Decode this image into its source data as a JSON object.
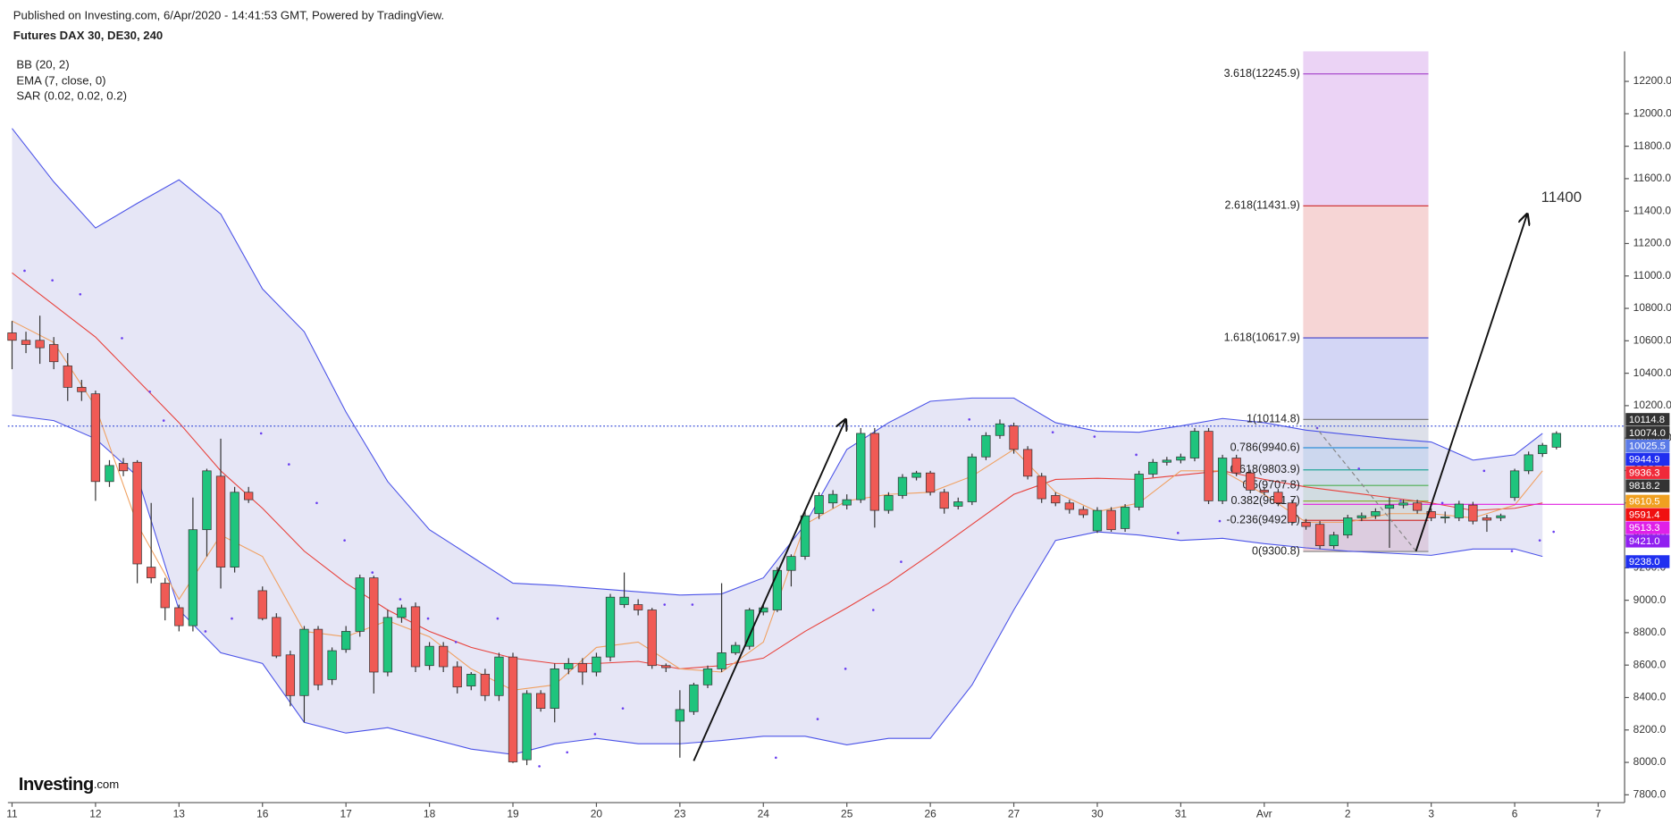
{
  "chart_data": {
    "type": "candlestick",
    "published": "Published on Investing.com, 6/Apr/2020 - 14:41:53 GMT, Powered by TradingView.",
    "title": "Futures DAX 30, DE30, 240",
    "logo": "Investing",
    "logo_suffix": ".com",
    "annotation": "11400",
    "up_color": "#1fc47d",
    "down_color": "#f05a55",
    "xlim": [
      -0.3,
      115.9
    ],
    "ylim": [
      7752,
      12385
    ],
    "xticks": [
      {
        "value": 0,
        "label": "11"
      },
      {
        "value": 6,
        "label": "12"
      },
      {
        "value": 12,
        "label": "13"
      },
      {
        "value": 18,
        "label": "16"
      },
      {
        "value": 24,
        "label": "17"
      },
      {
        "value": 30,
        "label": "18"
      },
      {
        "value": 36,
        "label": "19"
      },
      {
        "value": 42,
        "label": "20"
      },
      {
        "value": 48,
        "label": "23"
      },
      {
        "value": 54,
        "label": "24"
      },
      {
        "value": 60,
        "label": "25"
      },
      {
        "value": 66,
        "label": "26"
      },
      {
        "value": 72,
        "label": "27"
      },
      {
        "value": 78,
        "label": "30"
      },
      {
        "value": 84,
        "label": "31"
      },
      {
        "value": 90,
        "label": "Avr"
      },
      {
        "value": 96,
        "label": "2"
      },
      {
        "value": 102,
        "label": "3"
      },
      {
        "value": 108,
        "label": "6"
      },
      {
        "value": 114,
        "label": "7"
      }
    ],
    "yticks": [
      {
        "value": 7800,
        "label": "7800.0"
      },
      {
        "value": 8000,
        "label": "8000.0"
      },
      {
        "value": 8200,
        "label": "8200.0"
      },
      {
        "value": 8400,
        "label": "8400.0"
      },
      {
        "value": 8600,
        "label": "8600.0"
      },
      {
        "value": 8800,
        "label": "8800.0"
      },
      {
        "value": 9000,
        "label": "9000.0"
      },
      {
        "value": 9200,
        "label": "9200.0"
      },
      {
        "value": 9400,
        "label": "9400.0"
      },
      {
        "value": 9600,
        "label": "9600.0"
      },
      {
        "value": 9800,
        "label": "9800.0"
      },
      {
        "value": 10000,
        "label": "10000.0"
      },
      {
        "value": 10200,
        "label": "10200.0"
      },
      {
        "value": 10400,
        "label": "10400.0"
      },
      {
        "value": 10600,
        "label": "10600.0"
      },
      {
        "value": 10800,
        "label": "10800.0"
      },
      {
        "value": 11000,
        "label": "11000.0"
      },
      {
        "value": 11200,
        "label": "11200.0"
      },
      {
        "value": 11400,
        "label": "11400.0"
      },
      {
        "value": 11600,
        "label": "11600.0"
      },
      {
        "value": 11800,
        "label": "11800.0"
      },
      {
        "value": 12000,
        "label": "12000.0"
      },
      {
        "value": 12200,
        "label": "12200.0"
      }
    ],
    "candles": {
      "open": [
        10649,
        10603,
        10603,
        10577,
        10445,
        10313,
        10273,
        9732,
        9844,
        9851,
        9204,
        9105,
        8954,
        8843,
        9435,
        9765,
        9204,
        9666,
        9059,
        8894,
        8663,
        8412,
        8821,
        8511,
        8696,
        8808,
        9138,
        8557,
        8894,
        8960,
        8597,
        8716,
        8590,
        8471,
        8544,
        8412,
        8650,
        8016,
        8425,
        8333,
        8577,
        8610,
        8557,
        8650,
        8973,
        8973,
        8940,
        8597,
        8254,
        8313,
        8478,
        8577,
        8676,
        8716,
        8927,
        8940,
        9184,
        9270,
        9534,
        9600,
        9587,
        9620,
        10029,
        9554,
        9646,
        9758,
        9785,
        9666,
        9580,
        9607,
        9884,
        10016,
        10075,
        9930,
        9765,
        9646,
        9600,
        9560,
        9428,
        9554,
        9442,
        9574,
        9778,
        9851,
        9864,
        9877,
        10042,
        9613,
        9877,
        9785,
        9679,
        9666,
        9600,
        9481,
        9468,
        9336,
        9402,
        9508,
        9521,
        9567,
        9587,
        9600,
        9547,
        9508,
        9508,
        9587,
        9508,
        9508,
        9633,
        9798,
        9904,
        9944
      ],
      "high": [
        10722,
        10656,
        10755,
        10623,
        10524,
        10359,
        10293,
        9864,
        9877,
        9864,
        9600,
        9138,
        8973,
        9633,
        9811,
        9996,
        9699,
        9699,
        9085,
        8920,
        8689,
        8841,
        8841,
        8709,
        8841,
        9158,
        9151,
        8940,
        8973,
        8986,
        8742,
        8742,
        8623,
        8557,
        8577,
        8676,
        8676,
        8445,
        8445,
        8610,
        8643,
        8643,
        8676,
        9039,
        9171,
        9006,
        8953,
        8610,
        8445,
        8491,
        8597,
        9105,
        8742,
        8953,
        8973,
        9204,
        9283,
        9547,
        9666,
        9679,
        9653,
        10062,
        10062,
        9666,
        9778,
        9798,
        9798,
        9686,
        9633,
        9904,
        10036,
        10115,
        10095,
        9950,
        9785,
        9666,
        9620,
        9580,
        9574,
        9574,
        9593,
        9798,
        9871,
        9884,
        9904,
        10062,
        10062,
        9897,
        9897,
        9805,
        9699,
        9686,
        9620,
        9501,
        9488,
        9422,
        9527,
        9541,
        9567,
        9633,
        9620,
        9620,
        9567,
        9547,
        9613,
        9607,
        9527,
        9534,
        9811,
        9917,
        9970,
        10042
      ],
      "low": [
        10425,
        10524,
        10458,
        10425,
        10229,
        10229,
        9613,
        9699,
        9765,
        9105,
        9105,
        8876,
        8808,
        8808,
        9270,
        9072,
        9171,
        9600,
        8876,
        8643,
        8346,
        8247,
        8445,
        8478,
        8676,
        8775,
        8425,
        8531,
        8861,
        8557,
        8570,
        8557,
        8425,
        8445,
        8379,
        8379,
        7996,
        7983,
        8313,
        8247,
        8544,
        8478,
        8531,
        8623,
        8953,
        8907,
        8577,
        8557,
        8029,
        8293,
        8458,
        8557,
        8663,
        8696,
        8907,
        8927,
        9085,
        9250,
        9501,
        9567,
        9560,
        9600,
        9448,
        9534,
        9626,
        9739,
        9646,
        9534,
        9560,
        9587,
        9864,
        9996,
        9904,
        9745,
        9600,
        9580,
        9534,
        9508,
        9415,
        9422,
        9422,
        9554,
        9758,
        9831,
        9844,
        9857,
        9593,
        9593,
        9765,
        9659,
        9646,
        9580,
        9461,
        9435,
        9316,
        9316,
        9382,
        9488,
        9501,
        9323,
        9567,
        9534,
        9488,
        9475,
        9488,
        9468,
        9422,
        9488,
        9613,
        9778,
        9884,
        9930
      ],
      "close": [
        10603,
        10577,
        10557,
        10471,
        10313,
        10286,
        9732,
        9831,
        9798,
        9224,
        9138,
        8954,
        8843,
        9435,
        9798,
        9204,
        9666,
        9620,
        8887,
        8656,
        8412,
        8821,
        8478,
        8689,
        8808,
        9138,
        8557,
        8894,
        8953,
        8590,
        8716,
        8590,
        8465,
        8544,
        8412,
        8650,
        8003,
        8425,
        8333,
        8577,
        8610,
        8557,
        8650,
        9019,
        9019,
        8940,
        8597,
        8584,
        8326,
        8478,
        8577,
        8676,
        8722,
        8940,
        8953,
        9184,
        9270,
        9521,
        9646,
        9653,
        9620,
        10029,
        9554,
        9646,
        9758,
        9785,
        9666,
        9567,
        9607,
        9884,
        10016,
        10088,
        9930,
        9765,
        9626,
        9600,
        9560,
        9527,
        9554,
        9435,
        9574,
        9778,
        9851,
        9864,
        9884,
        10042,
        9613,
        9877,
        9785,
        9679,
        9666,
        9600,
        9481,
        9455,
        9336,
        9402,
        9508,
        9521,
        9547,
        9587,
        9600,
        9554,
        9508,
        9514,
        9593,
        9488,
        9494,
        9521,
        9798,
        9897,
        9956,
        10029
      ]
    },
    "indicators": [
      {
        "label": "BB (20, 2)",
        "color": "#4a52e8",
        "basis_color": "#e8403a",
        "fill": "#c8c8ec",
        "x": [
          0,
          3,
          6,
          9,
          12,
          15,
          18,
          21,
          24,
          27,
          30,
          33,
          36,
          39,
          42,
          45,
          48,
          51,
          54,
          57,
          60,
          63,
          66,
          69,
          72,
          75,
          78,
          81,
          84,
          87,
          90,
          93,
          96,
          99,
          102,
          105,
          108,
          110
        ],
        "upper": [
          11910,
          11580,
          11296,
          11448,
          11593,
          11382,
          10920,
          10656,
          10161,
          9732,
          9435,
          9270,
          9105,
          9092,
          9072,
          9052,
          9032,
          9039,
          9138,
          9468,
          9930,
          10095,
          10227,
          10247,
          10247,
          10095,
          10042,
          10036,
          10075,
          10121,
          10095,
          10049,
          10022,
          9996,
          9976,
          9864,
          9897,
          10029
        ],
        "basis": [
          11019,
          10821,
          10623,
          10359,
          10095,
          9798,
          9567,
          9303,
          9105,
          8940,
          8808,
          8709,
          8643,
          8610,
          8610,
          8623,
          8577,
          8597,
          8643,
          8808,
          8953,
          9105,
          9283,
          9468,
          9653,
          9745,
          9752,
          9745,
          9772,
          9798,
          9745,
          9699,
          9666,
          9633,
          9600,
          9554,
          9567,
          9600
        ],
        "lower": [
          10141,
          10108,
          9996,
          9765,
          8940,
          8676,
          8610,
          8247,
          8181,
          8214,
          8148,
          8082,
          8049,
          8115,
          8148,
          8115,
          8115,
          8135,
          8161,
          8161,
          8108,
          8148,
          8148,
          8478,
          8940,
          9369,
          9422,
          9402,
          9369,
          9382,
          9349,
          9323,
          9303,
          9290,
          9277,
          9316,
          9316,
          9270
        ]
      },
      {
        "label": "EMA (7, close, 0)",
        "color": "#f0a060",
        "x": [
          0,
          3,
          6,
          9,
          12,
          15,
          18,
          21,
          24,
          27,
          30,
          33,
          36,
          39,
          42,
          45,
          48,
          51,
          54,
          57,
          60,
          63,
          66,
          69,
          72,
          75,
          78,
          81,
          84,
          87,
          90,
          93,
          96,
          99,
          102,
          105,
          108,
          110
        ],
        "values": [
          10722,
          10590,
          10194,
          9468,
          9006,
          9402,
          9270,
          8808,
          8775,
          8874,
          8775,
          8577,
          8445,
          8478,
          8709,
          8742,
          8577,
          8557,
          8742,
          9468,
          9613,
          9653,
          9666,
          9765,
          9930,
          9666,
          9547,
          9600,
          9798,
          9798,
          9653,
          9481,
          9481,
          9534,
          9534,
          9508,
          9587,
          9798
        ]
      },
      {
        "label": "SAR (0.02, 0.02, 0.2)",
        "color": "#6a3ff0",
        "x": [
          0.9,
          2.9,
          4.9,
          7.9,
          9.9,
          10.9,
          13.9,
          15.8,
          17.9,
          19.9,
          21.9,
          23.9,
          25.9,
          27.9,
          29.9,
          31.9,
          34.9,
          37.9,
          39.9,
          41.9,
          43.9,
          46.9,
          48.9,
          54.9,
          57.9,
          59.9,
          61.9,
          63.9,
          68.8,
          71.8,
          74.8,
          77.8,
          80.8,
          83.8,
          86.8,
          93.8,
          96.8,
          99.8,
          102.8,
          105.8,
          107.8,
          109.8,
          110.8
        ],
        "values": [
          11032,
          10973,
          10887,
          10616,
          10286,
          10108,
          8808,
          8887,
          10029,
          9838,
          9600,
          9369,
          9171,
          9006,
          8887,
          8742,
          8887,
          7976,
          8062,
          8174,
          8333,
          8973,
          8973,
          8029,
          8267,
          8577,
          8940,
          9237,
          10115,
          10075,
          10036,
          10009,
          9897,
          9415,
          9488,
          10062,
          9811,
          9613,
          9600,
          9798,
          9303,
          9369,
          9422
        ]
      }
    ],
    "fibonacci": {
      "x_start": 92.8,
      "x_end": 101.8,
      "levels": [
        {
          "label": "3.618(12245.9)",
          "value": 12245.9,
          "color": "#a23ec8",
          "fill": "#e6c8f2"
        },
        {
          "label": "2.618(11431.9)",
          "value": 11431.9,
          "color": "#d03838",
          "fill": "#f4caca"
        },
        {
          "label": "1.618(10617.9)",
          "value": 10617.9,
          "color": "#4040c8",
          "fill": "#c8ccf2"
        },
        {
          "label": "1(10114.8)",
          "value": 10114.8,
          "color": "#808080",
          "fill": "#d4d8e4"
        },
        {
          "label": "0.786(9940.6)",
          "value": 9940.6,
          "color": "#2e8fd8",
          "fill": "#c4dcee"
        },
        {
          "label": "0.618(9803.9)",
          "value": 9803.9,
          "color": "#26a69a",
          "fill": "#c8e6e0"
        },
        {
          "label": "0.5(9707.8)",
          "value": 9707.8,
          "color": "#4caf50",
          "fill": "#cfe8cf"
        },
        {
          "label": "0.382(9611.7)",
          "value": 9611.7,
          "color": "#8aae3c",
          "fill": "#dde6c8"
        },
        {
          "label": "-0.236(9492.5)",
          "value": 9492.5,
          "color": "#d03838",
          "fill": "#e8c4cc"
        },
        {
          "label": "0(9300.8)",
          "value": 9300.8,
          "color": "#808080",
          "fill": "#e8c4cc"
        }
      ]
    },
    "price_labels": [
      {
        "value": 10114.8,
        "label": "10114.8",
        "color": "#333333"
      },
      {
        "value": 10074.0,
        "label": "10074.0",
        "color": "#333333",
        "line": "dotted",
        "line_color": "#3a4fd8"
      },
      {
        "value": 10025.5,
        "label": "10025.5",
        "color": "#5b7be8"
      },
      {
        "value": 9944.9,
        "label": "9944.9",
        "color": "#1f2ef0"
      },
      {
        "value": 9936.3,
        "label": "9936.3",
        "color": "#f02a3a"
      },
      {
        "value": 9818.2,
        "label": "9818.2",
        "color": "#333333"
      },
      {
        "value": 9610.5,
        "label": "9610.5",
        "color": "#f0a020"
      },
      {
        "value": 9591.4,
        "label": "9591.4",
        "color": "#f01010",
        "line": "solid",
        "line_color": "#e020e0"
      },
      {
        "value": 9513.3,
        "label": "9513.3",
        "color": "#e020e8"
      },
      {
        "value": 9421.0,
        "label": "9421.0",
        "color": "#9020f0"
      },
      {
        "value": 9238.0,
        "label": "9238.0",
        "color": "#2030f0"
      }
    ]
  }
}
